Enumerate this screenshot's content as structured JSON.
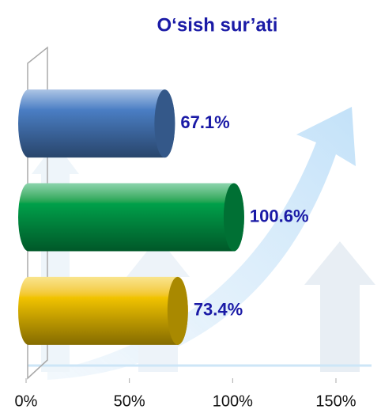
{
  "chart_data": {
    "type": "bar",
    "orientation": "horizontal",
    "title": "O‘sish sur’ati",
    "categories": [
      null,
      null,
      null
    ],
    "values": [
      67.1,
      100.6,
      73.4
    ],
    "value_labels": [
      "67.1%",
      "100.6%",
      "73.4%"
    ],
    "colors": [
      "#4a7ec4",
      "#00a04a",
      "#f2c400"
    ],
    "xlim": [
      0,
      150
    ],
    "xticks": [
      {
        "value": 0,
        "label": "0%"
      },
      {
        "value": 50,
        "label": "50%"
      },
      {
        "value": 100,
        "label": "100%"
      },
      {
        "value": 150,
        "label": "150%"
      }
    ]
  }
}
